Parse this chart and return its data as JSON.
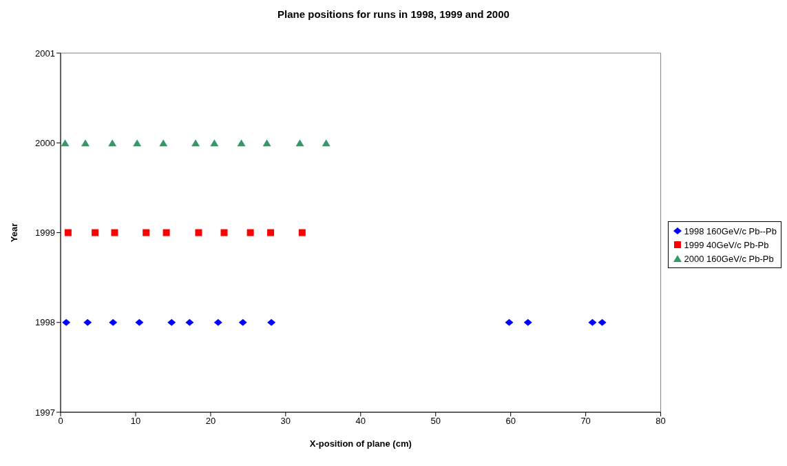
{
  "chart_data": {
    "type": "scatter",
    "title": "Plane positions for runs in 1998, 1999 and 2000",
    "xlabel": "X-position of plane (cm)",
    "ylabel": "Year",
    "xlim": [
      0,
      80
    ],
    "xticks": [
      0,
      10,
      20,
      30,
      40,
      50,
      60,
      70,
      80
    ],
    "ylim": [
      1997,
      2001
    ],
    "yticks": [
      1997,
      1998,
      1999,
      2000,
      2001
    ],
    "grid": false,
    "legend": "right",
    "series": [
      {
        "name": "1998 160GeV/c Pb--Pb",
        "color": "#0000ff",
        "marker": "diamond",
        "x": [
          0.75,
          3.6,
          7.0,
          10.5,
          14.8,
          17.2,
          21.0,
          24.3,
          28.1,
          59.8,
          62.3,
          70.9,
          72.2
        ],
        "values": [
          1998,
          1998,
          1998,
          1998,
          1998,
          1998,
          1998,
          1998,
          1998,
          1998,
          1998,
          1998,
          1998
        ]
      },
      {
        "name": "1999 40GeV/c Pb-Pb",
        "color": "#ff0000",
        "marker": "square",
        "x": [
          1.0,
          4.6,
          7.2,
          11.4,
          14.1,
          18.4,
          21.8,
          25.3,
          28.0,
          32.2
        ],
        "values": [
          1999,
          1999,
          1999,
          1999,
          1999,
          1999,
          1999,
          1999,
          1999,
          1999
        ]
      },
      {
        "name": "2000 160GeV/c Pb-Pb",
        "color": "#339966",
        "marker": "triangle",
        "x": [
          0.6,
          3.3,
          6.9,
          10.2,
          13.7,
          18.0,
          20.5,
          24.1,
          27.5,
          31.9,
          35.4
        ],
        "values": [
          2000,
          2000,
          2000,
          2000,
          2000,
          2000,
          2000,
          2000,
          2000,
          2000,
          2000
        ]
      }
    ]
  }
}
